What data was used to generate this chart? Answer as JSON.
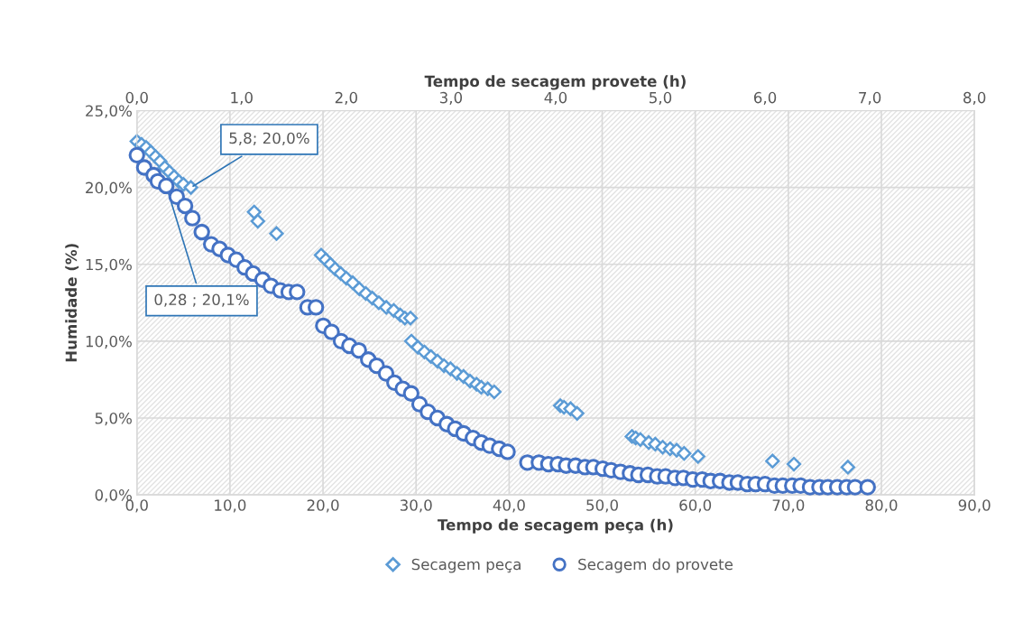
{
  "chart_data": {
    "type": "scatter",
    "xlabel": "Tempo de secagem peça (h)",
    "x2label": "Tempo de secagem provete (h)",
    "ylabel": "Humidade (%)",
    "xlim": [
      0,
      90
    ],
    "xticks": [
      {
        "value": 0,
        "label": "0,0"
      },
      {
        "value": 10,
        "label": "10,0"
      },
      {
        "value": 20,
        "label": "20,0"
      },
      {
        "value": 30,
        "label": "30,0"
      },
      {
        "value": 40,
        "label": "40,0"
      },
      {
        "value": 50,
        "label": "50,0"
      },
      {
        "value": 60,
        "label": "60,0"
      },
      {
        "value": 70,
        "label": "70,0"
      },
      {
        "value": 80,
        "label": "80,0"
      },
      {
        "value": 90,
        "label": "90,0"
      }
    ],
    "x2lim": [
      0,
      8
    ],
    "x2ticks": [
      {
        "value": 0,
        "label": "0,0"
      },
      {
        "value": 1,
        "label": "1,0"
      },
      {
        "value": 2,
        "label": "2,0"
      },
      {
        "value": 3,
        "label": "3,0"
      },
      {
        "value": 4,
        "label": "4,0"
      },
      {
        "value": 5,
        "label": "5,0"
      },
      {
        "value": 6,
        "label": "6,0"
      },
      {
        "value": 7,
        "label": "7,0"
      },
      {
        "value": 8,
        "label": "8,0"
      }
    ],
    "ylim": [
      0,
      25
    ],
    "yticks": [
      {
        "value": 0,
        "label": "0,0%"
      },
      {
        "value": 5,
        "label": "5,0%"
      },
      {
        "value": 10,
        "label": "10,0%"
      },
      {
        "value": 15,
        "label": "15,0%"
      },
      {
        "value": 20,
        "label": "20,0%"
      },
      {
        "value": 25,
        "label": "25,0%"
      }
    ],
    "grid": true,
    "legend": "bottom",
    "series": [
      {
        "name": "Secagem peça",
        "color": "#5b9bd5",
        "marker": "diamond",
        "x": [
          0,
          0.5,
          1.0,
          1.5,
          2.0,
          2.5,
          3.0,
          3.5,
          4.0,
          4.5,
          5.0,
          5.8,
          12.6,
          13.0,
          15.0,
          19.8,
          20.3,
          20.8,
          21.3,
          21.9,
          22.5,
          23.2,
          23.9,
          24.6,
          25.3,
          26.0,
          26.8,
          27.6,
          28.3,
          28.8,
          29.4,
          29.5,
          30.2,
          30.9,
          31.6,
          32.3,
          33.0,
          33.7,
          34.4,
          35.1,
          35.8,
          36.5,
          37.0,
          37.7,
          38.4,
          45.5,
          45.9,
          46.6,
          47.3,
          53.2,
          53.6,
          54.1,
          55.0,
          55.7,
          56.5,
          57.3,
          58.0,
          58.8,
          60.3,
          68.3,
          70.6,
          76.4
        ],
        "values": [
          23.0,
          22.8,
          22.6,
          22.3,
          22.0,
          21.7,
          21.3,
          21.0,
          20.7,
          20.4,
          20.2,
          20.0,
          18.4,
          17.8,
          17.0,
          15.6,
          15.3,
          15.0,
          14.7,
          14.4,
          14.1,
          13.8,
          13.4,
          13.1,
          12.8,
          12.5,
          12.2,
          12.0,
          11.7,
          11.5,
          11.5,
          10.0,
          9.6,
          9.3,
          9.0,
          8.7,
          8.4,
          8.2,
          7.9,
          7.7,
          7.4,
          7.2,
          7.0,
          6.9,
          6.7,
          5.8,
          5.7,
          5.6,
          5.3,
          3.8,
          3.7,
          3.6,
          3.4,
          3.3,
          3.1,
          3.0,
          2.9,
          2.7,
          2.5,
          2.2,
          2.0,
          1.8
        ]
      },
      {
        "name": "Secagem do provete",
        "color": "#4472c4",
        "marker": "circle",
        "axis": "x2",
        "x": [
          0,
          0.07,
          0.16,
          0.2,
          0.28,
          0.38,
          0.46,
          0.53,
          0.62,
          0.71,
          0.79,
          0.87,
          0.95,
          1.03,
          1.11,
          1.2,
          1.28,
          1.37,
          1.45,
          1.53,
          1.63,
          1.71,
          1.78,
          1.86,
          1.95,
          2.03,
          2.12,
          2.21,
          2.29,
          2.38,
          2.46,
          2.54,
          2.62,
          2.7,
          2.78,
          2.87,
          2.96,
          3.04,
          3.12,
          3.21,
          3.29,
          3.37,
          3.46,
          3.54,
          3.73,
          3.84,
          3.93,
          4.02,
          4.1,
          4.19,
          4.28,
          4.36,
          4.45,
          4.53,
          4.62,
          4.71,
          4.79,
          4.88,
          4.97,
          5.05,
          5.14,
          5.22,
          5.31,
          5.4,
          5.48,
          5.57,
          5.66,
          5.74,
          5.83,
          5.91,
          6.0,
          6.09,
          6.17,
          6.26,
          6.34,
          6.43,
          6.52,
          6.6,
          6.69,
          6.78,
          6.86,
          6.98
        ],
        "values": [
          22.1,
          21.3,
          20.8,
          20.4,
          20.1,
          19.4,
          18.8,
          18.0,
          17.1,
          16.3,
          16.0,
          15.6,
          15.3,
          14.8,
          14.4,
          14.0,
          13.6,
          13.3,
          13.2,
          13.2,
          12.2,
          12.2,
          11.0,
          10.6,
          10.0,
          9.7,
          9.4,
          8.8,
          8.4,
          7.9,
          7.3,
          6.9,
          6.6,
          5.9,
          5.4,
          5.0,
          4.6,
          4.3,
          4.0,
          3.7,
          3.4,
          3.2,
          3.0,
          2.8,
          2.1,
          2.1,
          2.0,
          2.0,
          1.9,
          1.9,
          1.8,
          1.8,
          1.7,
          1.6,
          1.5,
          1.4,
          1.3,
          1.3,
          1.2,
          1.2,
          1.1,
          1.1,
          1.0,
          1.0,
          0.9,
          0.9,
          0.8,
          0.8,
          0.7,
          0.7,
          0.7,
          0.6,
          0.6,
          0.6,
          0.6,
          0.5,
          0.5,
          0.5,
          0.5,
          0.5,
          0.5,
          0.5
        ]
      }
    ],
    "annotations": [
      {
        "text": "5,8; 20,0%",
        "x": 5.8,
        "y": 20.0
      },
      {
        "text": "0,28 ; 20,1%",
        "x": 3.15,
        "y": 20.1
      }
    ]
  }
}
